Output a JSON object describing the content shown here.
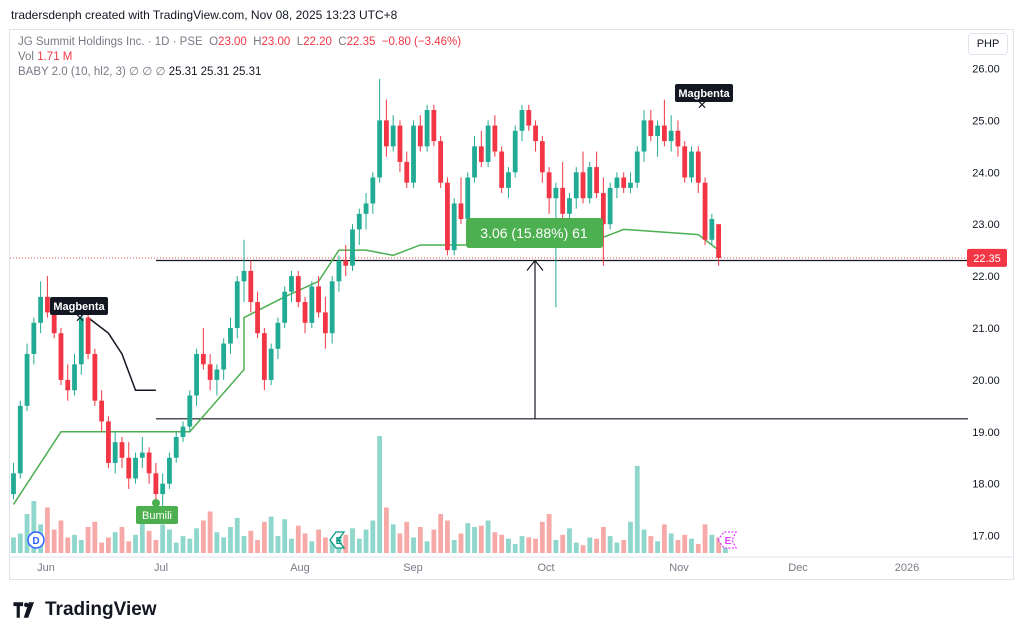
{
  "header": {
    "credit": "tradersdenph created with TradingView.com, Nov 08, 2025 13:23 UTC+8",
    "symbol": "JG Summit Holdings Inc. · 1D · PSE",
    "ohlc": {
      "o_label": "O",
      "o": "23.00",
      "h_label": "H",
      "h": "23.00",
      "l_label": "L",
      "l": "22.20",
      "c_label": "C",
      "c": "22.35",
      "change": "−0.80 (−3.46%)"
    },
    "vol_label": "Vol",
    "vol_value": "1.71 M",
    "indicator_label": "BABY 2.0 (10, hl2, 3)",
    "indicator_symbols": "∅ ∅ ∅",
    "indicator_values": "25.31  25.31  25.31",
    "currency": "PHP"
  },
  "footer": {
    "brand": "TradingView"
  },
  "chart_data": {
    "type": "candlestick",
    "symbol": "JG Summit Holdings Inc.",
    "timeframe": "1D",
    "exchange": "PSE",
    "currency": "PHP",
    "y_ticks": [
      "26.00",
      "25.00",
      "24.00",
      "23.00",
      "22.00",
      "21.00",
      "20.00",
      "19.00",
      "18.00",
      "17.00"
    ],
    "x_ticks": [
      "Jun",
      "Jul",
      "Aug",
      "Sep",
      "Oct",
      "Nov",
      "Dec",
      "2026"
    ],
    "last_price": "22.35",
    "candles_ohlc": [
      [
        17.8,
        18.4,
        17.7,
        18.2
      ],
      [
        18.2,
        19.6,
        18.1,
        19.5
      ],
      [
        19.5,
        20.7,
        19.4,
        20.5
      ],
      [
        20.5,
        21.2,
        20.3,
        21.1
      ],
      [
        21.1,
        21.9,
        20.9,
        21.6
      ],
      [
        21.6,
        22.0,
        21.2,
        21.3
      ],
      [
        21.3,
        21.5,
        20.8,
        20.9
      ],
      [
        20.9,
        21.0,
        19.9,
        20.0
      ],
      [
        20.0,
        20.3,
        19.6,
        19.8
      ],
      [
        19.8,
        20.5,
        19.7,
        20.3
      ],
      [
        20.3,
        21.3,
        20.1,
        21.2
      ],
      [
        21.2,
        21.5,
        20.4,
        20.5
      ],
      [
        20.5,
        20.6,
        19.5,
        19.6
      ],
      [
        19.6,
        19.8,
        19.0,
        19.2
      ],
      [
        19.2,
        19.3,
        18.3,
        18.4
      ],
      [
        18.4,
        19.0,
        18.2,
        18.8
      ],
      [
        18.8,
        18.9,
        18.3,
        18.5
      ],
      [
        18.5,
        18.8,
        17.9,
        18.1
      ],
      [
        18.1,
        18.6,
        18.0,
        18.5
      ],
      [
        18.5,
        18.9,
        18.3,
        18.6
      ],
      [
        18.6,
        18.7,
        18.0,
        18.2
      ],
      [
        18.2,
        18.4,
        17.6,
        17.8
      ],
      [
        17.8,
        18.2,
        17.5,
        18.0
      ],
      [
        18.0,
        18.6,
        17.9,
        18.5
      ],
      [
        18.5,
        19.0,
        18.4,
        18.9
      ],
      [
        18.9,
        19.2,
        18.8,
        19.1
      ],
      [
        19.1,
        19.8,
        19.0,
        19.7
      ],
      [
        19.7,
        20.6,
        19.5,
        20.5
      ],
      [
        20.5,
        21.0,
        20.2,
        20.3
      ],
      [
        20.3,
        20.5,
        19.8,
        20.0
      ],
      [
        20.0,
        20.3,
        19.7,
        20.2
      ],
      [
        20.2,
        20.8,
        20.0,
        20.7
      ],
      [
        20.7,
        21.2,
        20.5,
        21.0
      ],
      [
        21.0,
        22.0,
        20.8,
        21.9
      ],
      [
        21.9,
        22.7,
        21.5,
        22.1
      ],
      [
        22.1,
        22.3,
        21.3,
        21.5
      ],
      [
        21.5,
        21.7,
        20.8,
        20.9
      ],
      [
        20.9,
        21.0,
        19.8,
        20.0
      ],
      [
        20.0,
        20.7,
        19.9,
        20.6
      ],
      [
        20.6,
        21.2,
        20.4,
        21.1
      ],
      [
        21.1,
        21.8,
        21.0,
        21.7
      ],
      [
        21.7,
        22.1,
        21.5,
        22.0
      ],
      [
        22.0,
        22.1,
        21.4,
        21.5
      ],
      [
        21.5,
        21.6,
        20.9,
        21.1
      ],
      [
        21.1,
        21.9,
        21.0,
        21.8
      ],
      [
        21.8,
        22.0,
        21.2,
        21.3
      ],
      [
        21.3,
        21.6,
        20.6,
        20.9
      ],
      [
        20.9,
        22.0,
        20.7,
        21.9
      ],
      [
        21.9,
        22.4,
        21.7,
        22.3
      ],
      [
        22.3,
        22.6,
        22.0,
        22.2
      ],
      [
        22.2,
        23.0,
        22.1,
        22.9
      ],
      [
        22.9,
        23.3,
        22.6,
        23.2
      ],
      [
        23.2,
        23.6,
        22.9,
        23.4
      ],
      [
        23.4,
        24.0,
        23.2,
        23.9
      ],
      [
        23.9,
        25.8,
        23.8,
        25.0
      ],
      [
        25.0,
        25.4,
        24.3,
        24.5
      ],
      [
        24.5,
        25.1,
        24.4,
        24.9
      ],
      [
        24.9,
        25.0,
        24.0,
        24.2
      ],
      [
        24.2,
        24.4,
        23.7,
        23.8
      ],
      [
        23.8,
        25.0,
        23.7,
        24.9
      ],
      [
        24.9,
        25.1,
        24.4,
        24.5
      ],
      [
        24.5,
        25.3,
        24.4,
        25.2
      ],
      [
        25.2,
        25.3,
        24.5,
        24.6
      ],
      [
        24.6,
        24.7,
        23.7,
        23.8
      ],
      [
        23.8,
        23.9,
        22.4,
        22.5
      ],
      [
        22.5,
        23.5,
        22.4,
        23.4
      ],
      [
        23.4,
        23.9,
        23.0,
        23.1
      ],
      [
        23.1,
        24.0,
        23.0,
        23.9
      ],
      [
        23.9,
        24.7,
        23.8,
        24.5
      ],
      [
        24.5,
        24.8,
        24.1,
        24.2
      ],
      [
        24.2,
        25.0,
        24.1,
        24.9
      ],
      [
        24.9,
        25.1,
        24.3,
        24.4
      ],
      [
        24.4,
        24.5,
        23.6,
        23.7
      ],
      [
        23.7,
        24.1,
        23.5,
        24.0
      ],
      [
        24.0,
        24.9,
        23.9,
        24.8
      ],
      [
        24.8,
        25.3,
        24.6,
        25.2
      ],
      [
        25.2,
        25.3,
        24.8,
        24.9
      ],
      [
        24.9,
        25.0,
        24.4,
        24.6
      ],
      [
        24.6,
        24.7,
        23.8,
        24.0
      ],
      [
        24.0,
        24.1,
        23.2,
        23.5
      ],
      [
        23.5,
        23.8,
        21.4,
        23.7
      ],
      [
        23.7,
        24.2,
        23.1,
        23.2
      ],
      [
        23.2,
        23.6,
        22.8,
        23.5
      ],
      [
        23.5,
        24.1,
        23.3,
        24.0
      ],
      [
        24.0,
        24.4,
        23.4,
        23.5
      ],
      [
        23.5,
        24.2,
        23.4,
        24.1
      ],
      [
        24.1,
        24.4,
        23.5,
        23.6
      ],
      [
        23.6,
        23.9,
        22.2,
        23.0
      ],
      [
        23.0,
        23.8,
        22.9,
        23.7
      ],
      [
        23.7,
        24.0,
        23.5,
        23.9
      ],
      [
        23.9,
        24.0,
        23.6,
        23.7
      ],
      [
        23.7,
        24.0,
        23.6,
        23.8
      ],
      [
        23.8,
        24.5,
        23.7,
        24.4
      ],
      [
        24.4,
        25.2,
        24.2,
        25.0
      ],
      [
        25.0,
        25.2,
        24.6,
        24.7
      ],
      [
        24.7,
        25.0,
        24.3,
        24.9
      ],
      [
        24.9,
        25.4,
        24.5,
        24.6
      ],
      [
        24.6,
        25.1,
        24.4,
        24.8
      ],
      [
        24.8,
        25.0,
        24.3,
        24.5
      ],
      [
        24.5,
        24.6,
        23.8,
        23.9
      ],
      [
        23.9,
        24.5,
        23.8,
        24.4
      ],
      [
        24.4,
        24.5,
        23.6,
        23.8
      ],
      [
        23.8,
        23.9,
        22.6,
        22.7
      ],
      [
        22.7,
        23.2,
        22.6,
        23.1
      ],
      [
        23.0,
        23.0,
        22.2,
        22.35
      ]
    ],
    "volume_scale_max": 100,
    "volume": [
      12,
      15,
      30,
      40,
      22,
      35,
      18,
      25,
      12,
      14,
      10,
      20,
      24,
      8,
      12,
      16,
      20,
      9,
      14,
      28,
      17,
      10,
      22,
      18,
      8,
      13,
      11,
      19,
      25,
      32,
      16,
      12,
      20,
      27,
      13,
      17,
      10,
      24,
      28,
      13,
      26,
      11,
      21,
      15,
      9,
      18,
      12,
      10,
      13,
      14,
      19,
      11,
      18,
      25,
      90,
      35,
      22,
      15,
      24,
      12,
      20,
      9,
      18,
      30,
      25,
      10,
      15,
      23,
      20,
      21,
      25,
      16,
      14,
      11,
      7,
      13,
      12,
      11,
      24,
      30,
      10,
      14,
      19,
      8,
      6,
      12,
      11,
      20,
      13,
      8,
      10,
      24,
      67,
      18,
      13,
      9,
      22,
      15,
      10,
      14,
      11,
      7,
      22,
      14,
      12,
      9
    ],
    "supertrend_line": [
      [
        0,
        17.6
      ],
      [
        4,
        18.4
      ],
      [
        7,
        19.0
      ],
      [
        18,
        19.0
      ],
      [
        26,
        19.0
      ],
      [
        34,
        20.2
      ],
      [
        34,
        21.2
      ],
      [
        40,
        21.6
      ],
      [
        45,
        21.9
      ],
      [
        48,
        22.5
      ],
      [
        52,
        22.5
      ],
      [
        56,
        22.4
      ],
      [
        60,
        22.6
      ],
      [
        74,
        22.6
      ],
      [
        78,
        22.7
      ],
      [
        86,
        22.7
      ],
      [
        90,
        22.9
      ],
      [
        101,
        22.8
      ],
      [
        104,
        22.5
      ]
    ],
    "magbenta_line": [
      [
        11,
        21.2
      ],
      [
        14,
        20.9
      ],
      [
        16,
        20.5
      ],
      [
        18,
        19.8
      ],
      [
        21,
        19.8
      ]
    ],
    "horizontal_levels": [
      "22.30",
      "19.25"
    ],
    "measure": {
      "label": "3.06 (15.88%) 61",
      "from_price": "19.25",
      "to_price": "22.30"
    },
    "annotations": {
      "magbenta_label": "Magbenta",
      "bumili_label": "Bumili"
    },
    "event_badges": {
      "dividend": "D",
      "earnings": "E"
    },
    "colors": {
      "up": "#22ab94",
      "down": "#f23645",
      "vol_up": "#8fd6cc",
      "vol_down": "#f7a9a7",
      "supertrend": "#4caf50",
      "label_dark": "#131722",
      "price_tag": "#f23645"
    }
  }
}
